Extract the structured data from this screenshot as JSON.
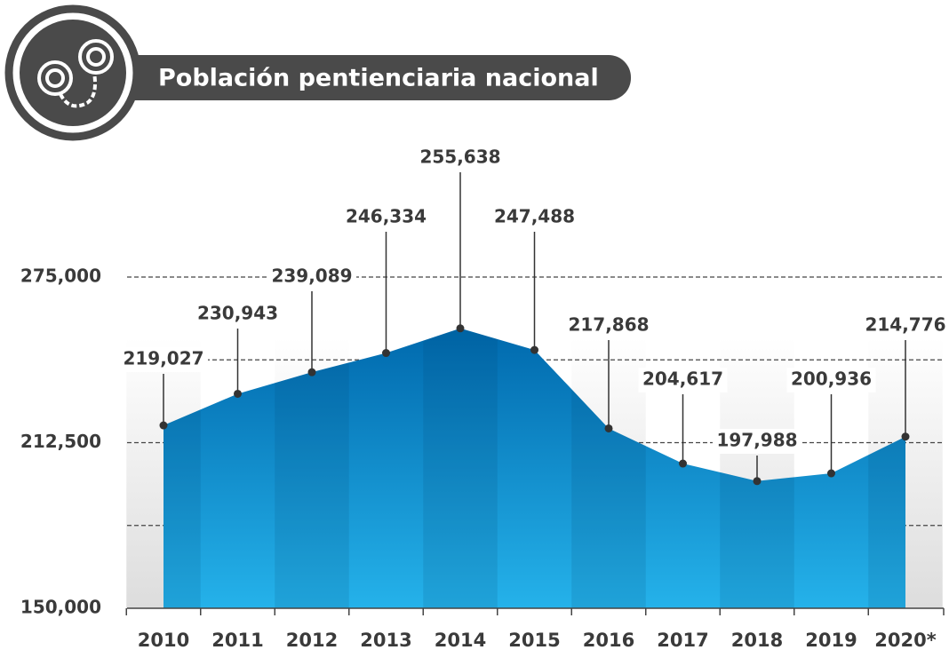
{
  "chart_data": {
    "type": "area",
    "title": "Población pentienciaria nacional",
    "categories": [
      "2010",
      "2011",
      "2012",
      "2013",
      "2014",
      "2015",
      "2016",
      "2017",
      "2018",
      "2019",
      "2020*"
    ],
    "values": [
      219027,
      230943,
      239089,
      246334,
      255638,
      247488,
      217868,
      204617,
      197988,
      200936,
      214776
    ],
    "value_labels": [
      "219,027",
      "230,943",
      "239,089",
      "246,334",
      "255,638",
      "247,488",
      "217,868",
      "204,617",
      "197,988",
      "200,936",
      "214,776"
    ],
    "color": "#0a86c8",
    "ylim": [
      150000,
      275000
    ],
    "yticks": [
      {
        "value": 150000,
        "label": "150,000"
      },
      {
        "value": 212500,
        "label": "212,500"
      },
      {
        "value": 275000,
        "label": "275,000"
      }
    ],
    "minor_yticks": [
      181250,
      243750
    ],
    "grid": true
  }
}
